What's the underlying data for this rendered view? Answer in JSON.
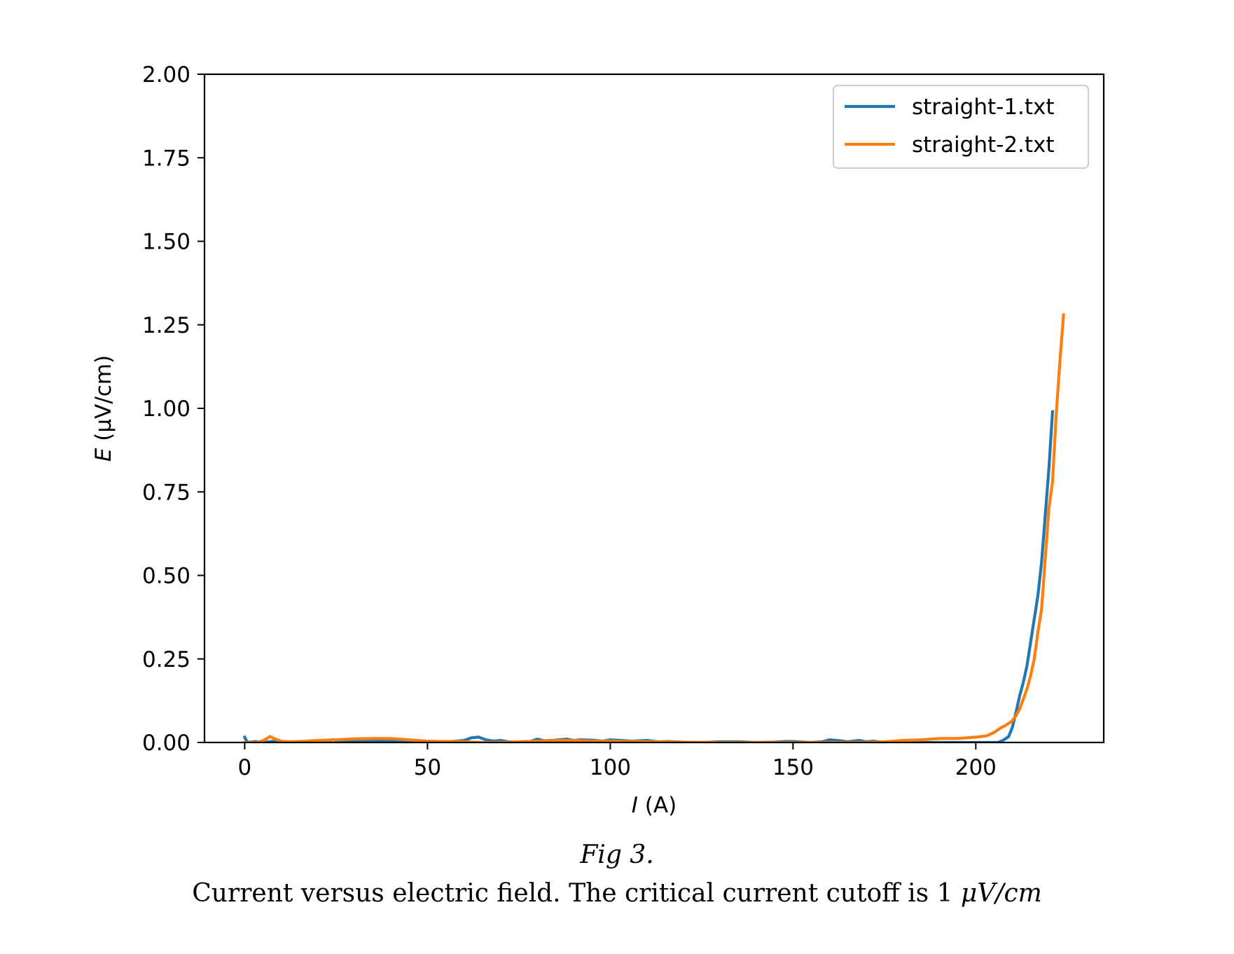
{
  "chart_data": {
    "type": "line",
    "xlabel_var": "I",
    "xlabel_unit": " (A)",
    "ylabel_var": "E",
    "ylabel_unit": " (μV/cm)",
    "xlim": [
      -11,
      235
    ],
    "ylim": [
      0,
      2.0
    ],
    "x_ticks": [
      0,
      50,
      100,
      150,
      200
    ],
    "x_tick_labels": [
      "0",
      "50",
      "100",
      "150",
      "200"
    ],
    "y_ticks": [
      0,
      0.25,
      0.5,
      0.75,
      1.0,
      1.25,
      1.5,
      1.75,
      2.0
    ],
    "y_tick_labels": [
      "0.00",
      "0.25",
      "0.50",
      "0.75",
      "1.00",
      "1.25",
      "1.50",
      "1.75",
      "2.00"
    ],
    "grid": false,
    "legend_position": "top-right",
    "series": [
      {
        "name": "straight-1.txt",
        "color": "#1f77b4",
        "x": [
          0,
          0.5,
          1,
          3,
          5,
          8,
          10,
          13,
          15,
          18,
          20,
          23,
          24,
          26,
          30,
          35,
          40,
          45,
          50,
          55,
          58,
          60,
          62,
          64,
          66,
          68,
          70,
          72,
          75,
          78,
          80,
          82,
          85,
          88,
          90,
          92,
          95,
          98,
          100,
          103,
          106,
          110,
          113,
          116,
          120,
          125,
          130,
          135,
          140,
          145,
          148,
          150,
          155,
          158,
          160,
          163,
          165,
          168,
          170,
          172,
          175,
          180,
          185,
          190,
          195,
          200,
          203,
          205,
          206,
          207,
          208,
          209,
          210,
          211,
          212,
          213,
          214,
          215,
          216,
          217,
          218,
          219,
          220,
          221
        ],
        "y": [
          0.016,
          0.005,
          0.0,
          0.003,
          0.0,
          0.004,
          0.002,
          0.0,
          0.003,
          0.002,
          0.004,
          0.003,
          0.008,
          0.004,
          0.003,
          0.005,
          0.004,
          0.003,
          0.004,
          0.002,
          0.004,
          0.006,
          0.014,
          0.016,
          0.008,
          0.004,
          0.006,
          0.002,
          0.0,
          0.002,
          0.01,
          0.005,
          0.007,
          0.01,
          0.006,
          0.008,
          0.007,
          0.004,
          0.008,
          0.006,
          0.004,
          0.006,
          0.002,
          0.003,
          0.001,
          0.0,
          0.002,
          0.002,
          0.0,
          0.001,
          0.003,
          0.003,
          0.0,
          0.002,
          0.008,
          0.005,
          0.002,
          0.006,
          0.002,
          0.004,
          0.0,
          0.0,
          0.0,
          0.0,
          0.0,
          0.0,
          0.0,
          0.0,
          0.0,
          0.004,
          0.01,
          0.018,
          0.045,
          0.09,
          0.14,
          0.18,
          0.23,
          0.3,
          0.37,
          0.44,
          0.54,
          0.68,
          0.82,
          0.99
        ]
      },
      {
        "name": "straight-2.txt",
        "color": "#ff7f0e",
        "x": [
          0,
          3,
          5,
          7,
          8,
          10,
          12,
          15,
          20,
          25,
          30,
          35,
          40,
          45,
          50,
          55,
          60,
          65,
          70,
          75,
          80,
          85,
          90,
          95,
          100,
          110,
          120,
          130,
          140,
          150,
          160,
          170,
          175,
          180,
          185,
          190,
          195,
          200,
          203,
          205,
          207,
          208,
          210,
          211,
          212,
          213,
          214,
          215,
          216,
          217,
          218,
          219,
          220,
          221,
          222,
          223,
          224
        ],
        "y": [
          0.0,
          0.0,
          0.005,
          0.018,
          0.012,
          0.004,
          0.002,
          0.003,
          0.006,
          0.008,
          0.011,
          0.012,
          0.012,
          0.008,
          0.004,
          0.003,
          0.002,
          0.0,
          0.0,
          0.002,
          0.004,
          0.006,
          0.006,
          0.004,
          0.004,
          0.002,
          0.001,
          0.0,
          0.0,
          0.0,
          0.0,
          0.0,
          0.002,
          0.006,
          0.008,
          0.012,
          0.012,
          0.016,
          0.02,
          0.03,
          0.045,
          0.05,
          0.065,
          0.08,
          0.1,
          0.13,
          0.16,
          0.2,
          0.25,
          0.33,
          0.4,
          0.55,
          0.7,
          0.78,
          0.98,
          1.14,
          1.28
        ]
      }
    ]
  },
  "caption": {
    "fig_label": "Fig 3.",
    "text": "Current versus electric field. The critical current cutoff is 1 ",
    "unit": "μV/cm"
  }
}
